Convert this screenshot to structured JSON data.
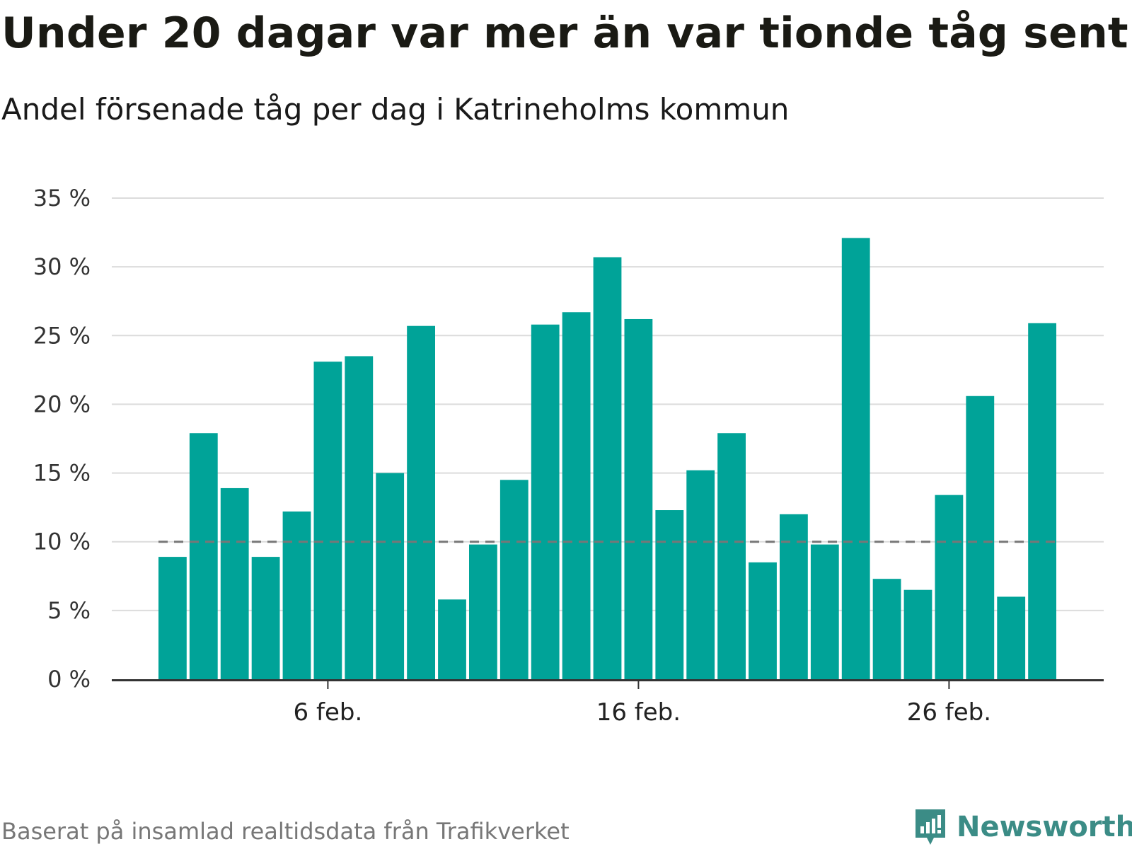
{
  "title": "Under 20 dagar var mer än var tionde tåg sent",
  "subtitle": "Andel försenade tåg per dag i Katrineholms kommun",
  "footer": "Baserat på insamlad realtidsdata från Trafikverket",
  "brand": {
    "name": "Newsworthy",
    "icon": "newsworthy-logo-icon",
    "color": "#3b8c86"
  },
  "chart_data": {
    "type": "bar",
    "unit": "%",
    "x_start": "1 feb.",
    "bar_color": "#00a398",
    "categories": [
      "1 feb.",
      "2 feb.",
      "3 feb.",
      "4 feb.",
      "5 feb.",
      "6 feb.",
      "7 feb.",
      "8 feb.",
      "9 feb.",
      "10 feb.",
      "11 feb.",
      "12 feb.",
      "13 feb.",
      "14 feb.",
      "15 feb.",
      "16 feb.",
      "17 feb.",
      "18 feb.",
      "19 feb.",
      "20 feb.",
      "21 feb.",
      "22 feb.",
      "23 feb.",
      "24 feb.",
      "25 feb.",
      "26 feb.",
      "27 feb.",
      "28 feb.",
      "29 feb."
    ],
    "values": [
      8.9,
      17.9,
      13.9,
      8.9,
      12.2,
      23.1,
      23.5,
      15.0,
      25.7,
      5.8,
      9.8,
      14.5,
      25.8,
      26.7,
      30.7,
      26.2,
      12.3,
      15.2,
      17.9,
      8.5,
      12.0,
      9.8,
      32.1,
      7.3,
      6.5,
      13.4,
      20.6,
      6.0,
      25.9
    ],
    "reference_line": {
      "value": 10,
      "style": "dashed",
      "color": "#777777"
    },
    "ylim": [
      0,
      35
    ],
    "yticks": [
      0,
      5,
      10,
      15,
      20,
      25,
      30,
      35
    ],
    "ytick_labels": [
      "0 %",
      "5 %",
      "10 %",
      "15 %",
      "20 %",
      "25 %",
      "30 %",
      "35 %"
    ],
    "xticks": [
      {
        "category": "6 feb.",
        "label": "6 feb."
      },
      {
        "category": "16 feb.",
        "label": "16 feb."
      },
      {
        "category": "26 feb.",
        "label": "26 feb."
      }
    ],
    "grid": true
  }
}
